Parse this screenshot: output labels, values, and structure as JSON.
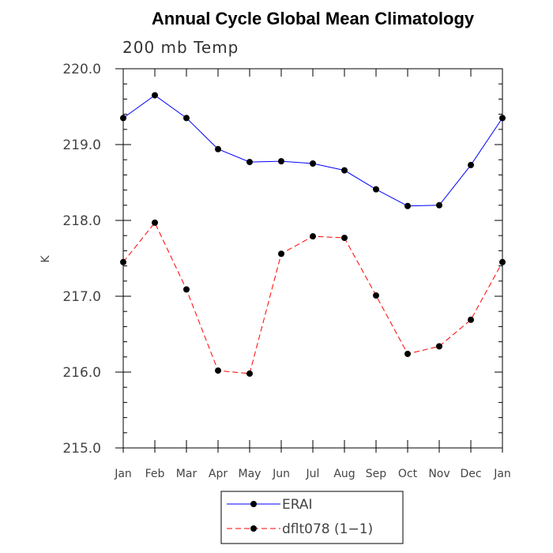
{
  "chart_data": {
    "type": "line",
    "title": "Annual Cycle Global Mean Climatology",
    "subtitle": "200 mb Temp",
    "xlabel": "",
    "ylabel": "K",
    "categories": [
      "Jan",
      "Feb",
      "Mar",
      "Apr",
      "May",
      "Jun",
      "Jul",
      "Aug",
      "Sep",
      "Oct",
      "Nov",
      "Dec",
      "Jan"
    ],
    "ylim": [
      215.0,
      220.0
    ],
    "yticks": [
      "215.0",
      "216.0",
      "217.0",
      "218.0",
      "219.0",
      "220.0"
    ],
    "yminor_step": 0.2,
    "legend_position": "bottom-center",
    "series": [
      {
        "name": "ERAI",
        "color": "#0000ff",
        "line_style": "solid",
        "marker": "circle",
        "values": [
          219.35,
          219.65,
          219.35,
          218.94,
          218.77,
          218.78,
          218.75,
          218.66,
          218.41,
          218.19,
          218.2,
          218.73,
          219.35
        ]
      },
      {
        "name": "dflt078 (1−1)",
        "color": "#ff0000",
        "line_style": "dashed",
        "marker": "circle",
        "values": [
          217.45,
          217.97,
          217.09,
          216.02,
          215.98,
          217.56,
          217.79,
          217.77,
          217.01,
          216.24,
          216.34,
          216.69,
          217.45
        ]
      }
    ]
  }
}
